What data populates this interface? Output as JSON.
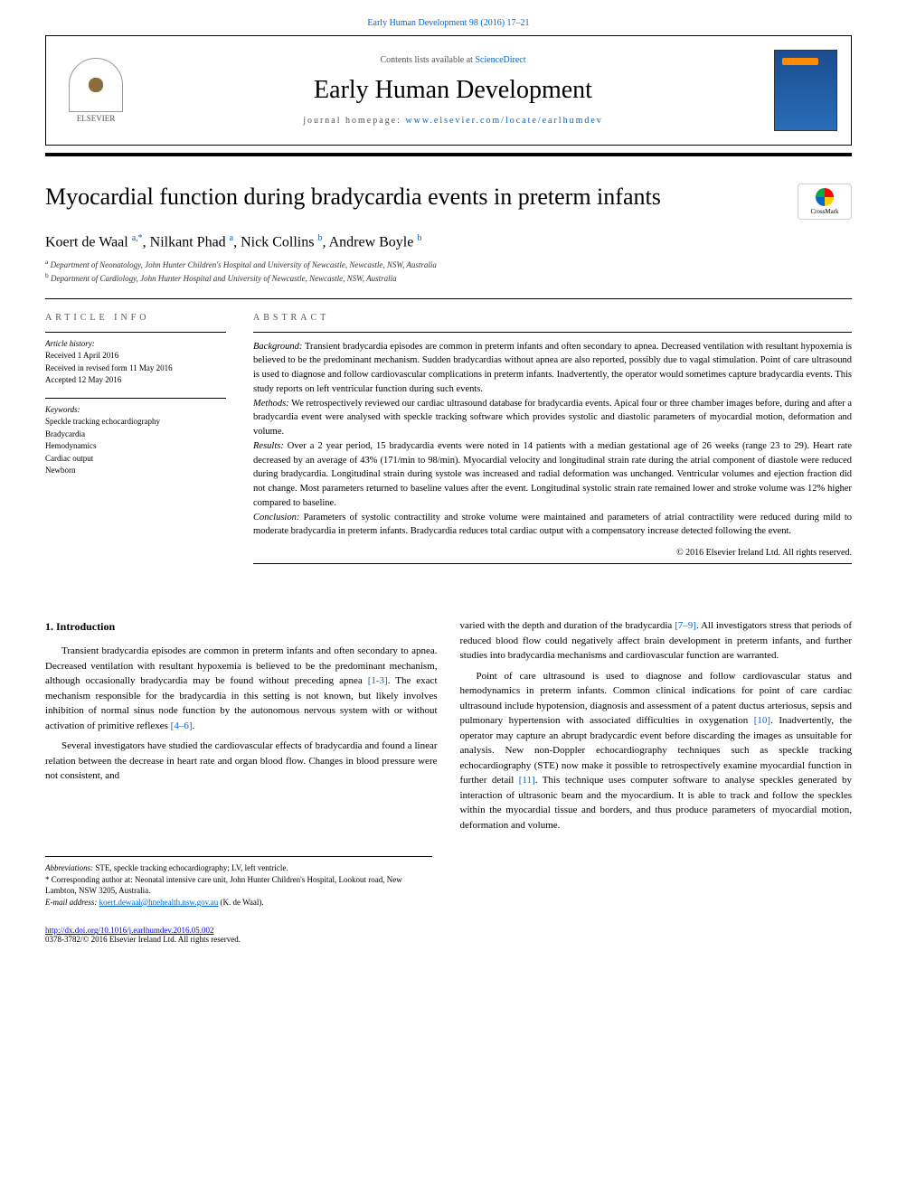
{
  "citation": "Early Human Development 98 (2016) 17–21",
  "header": {
    "contents_prefix": "Contents lists available at ",
    "contents_link": "ScienceDirect",
    "journal_name": "Early Human Development",
    "homepage_prefix": "journal homepage: ",
    "homepage_url": "www.elsevier.com/locate/earlhumdev",
    "publisher": "ELSEVIER"
  },
  "crossmark_label": "CrossMark",
  "title": "Myocardial function during bradycardia events in preterm infants",
  "authors_html": "Koert de Waal <sup>a,*</sup>, Nilkant Phad <sup>a</sup>, Nick Collins <sup>b</sup>, Andrew Boyle <sup>b</sup>",
  "affiliations": {
    "a": "Department of Neonatology, John Hunter Children's Hospital and University of Newcastle, Newcastle, NSW, Australia",
    "b": "Department of Cardiology, John Hunter Hospital and University of Newcastle, Newcastle, NSW, Australia"
  },
  "article_info": {
    "label": "ARTICLE INFO",
    "history_label": "Article history:",
    "received": "Received 1 April 2016",
    "revised": "Received in revised form 11 May 2016",
    "accepted": "Accepted 12 May 2016",
    "keywords_label": "Keywords:",
    "keywords": [
      "Speckle tracking echocardiography",
      "Bradycardia",
      "Hemodynamics",
      "Cardiac output",
      "Newborn"
    ]
  },
  "abstract": {
    "label": "ABSTRACT",
    "background_label": "Background:",
    "background": " Transient bradycardia episodes are common in preterm infants and often secondary to apnea. Decreased ventilation with resultant hypoxemia is believed to be the predominant mechanism. Sudden bradycardias without apnea are also reported, possibly due to vagal stimulation. Point of care ultrasound is used to diagnose and follow cardiovascular complications in preterm infants. Inadvertently, the operator would sometimes capture bradycardia events. This study reports on left ventricular function during such events.",
    "methods_label": "Methods:",
    "methods": " We retrospectively reviewed our cardiac ultrasound database for bradycardia events. Apical four or three chamber images before, during and after a bradycardia event were analysed with speckle tracking software which provides systolic and diastolic parameters of myocardial motion, deformation and volume.",
    "results_label": "Results:",
    "results": " Over a 2 year period, 15 bradycardia events were noted in 14 patients with a median gestational age of 26 weeks (range 23 to 29). Heart rate decreased by an average of 43% (171/min to 98/min). Myocardial velocity and longitudinal strain rate during the atrial component of diastole were reduced during bradycardia. Longitudinal strain during systole was increased and radial deformation was unchanged. Ventricular volumes and ejection fraction did not change. Most parameters returned to baseline values after the event. Longitudinal systolic strain rate remained lower and stroke volume was 12% higher compared to baseline.",
    "conclusion_label": "Conclusion:",
    "conclusion": " Parameters of systolic contractility and stroke volume were maintained and parameters of atrial contractility were reduced during mild to moderate bradycardia in preterm infants. Bradycardia reduces total cardiac output with a compensatory increase detected following the event.",
    "copyright": "© 2016 Elsevier Ireland Ltd. All rights reserved."
  },
  "body": {
    "intro_heading": "1. Introduction",
    "p1": "Transient bradycardia episodes are common in preterm infants and often secondary to apnea. Decreased ventilation with resultant hypoxemia is believed to be the predominant mechanism, although occasionally bradycardia may be found without preceding apnea [1-3]. The exact mechanism responsible for the bradycardia in this setting is not known, but likely involves inhibition of normal sinus node function by the autonomous nervous system with or without activation of primitive reflexes [4–6].",
    "p2": "Several investigators have studied the cardiovascular effects of bradycardia and found a linear relation between the decrease in heart rate and organ blood flow. Changes in blood pressure were not consistent, and",
    "p3": "varied with the depth and duration of the bradycardia [7–9]. All investigators stress that periods of reduced blood flow could negatively affect brain development in preterm infants, and further studies into bradycardia mechanisms and cardiovascular function are warranted.",
    "p4": "Point of care ultrasound is used to diagnose and follow cardiovascular status and hemodynamics in preterm infants. Common clinical indications for point of care cardiac ultrasound include hypotension, diagnosis and assessment of a patent ductus arteriosus, sepsis and pulmonary hypertension with associated difficulties in oxygenation [10]. Inadvertently, the operator may capture an abrupt bradycardic event before discarding the images as unsuitable for analysis. New non-Doppler echocardiography techniques such as speckle tracking echocardiography (STE) now make it possible to retrospectively examine myocardial function in further detail [11]. This technique uses computer software to analyse speckles generated by interaction of ultrasonic beam and the myocardium. It is able to track and follow the speckles within the myocardial tissue and borders, and thus produce parameters of myocardial motion, deformation and volume.",
    "ref1": "[1-3]",
    "ref2": "[4–6]",
    "ref3": "[7–9]",
    "ref4": "[10]",
    "ref5": "[11]"
  },
  "footnotes": {
    "abbrev_label": "Abbreviations:",
    "abbrev": " STE, speckle tracking echocardiography; LV, left ventricle.",
    "corr_label": "*",
    "corr": " Corresponding author at: Neonatal intensive care unit, John Hunter Children's Hospital, Lookout road, New Lambton, NSW 3205, Australia.",
    "email_label": "E-mail address:",
    "email": "koert.dewaal@hnehealth.nsw.gov.au",
    "email_suffix": " (K. de Waal)."
  },
  "footer": {
    "doi": "http://dx.doi.org/10.1016/j.earlhumdev.2016.05.002",
    "issn": "0378-3782/© 2016 Elsevier Ireland Ltd. All rights reserved."
  },
  "colors": {
    "link": "#0066cc",
    "text": "#000000",
    "gray": "#555555"
  }
}
